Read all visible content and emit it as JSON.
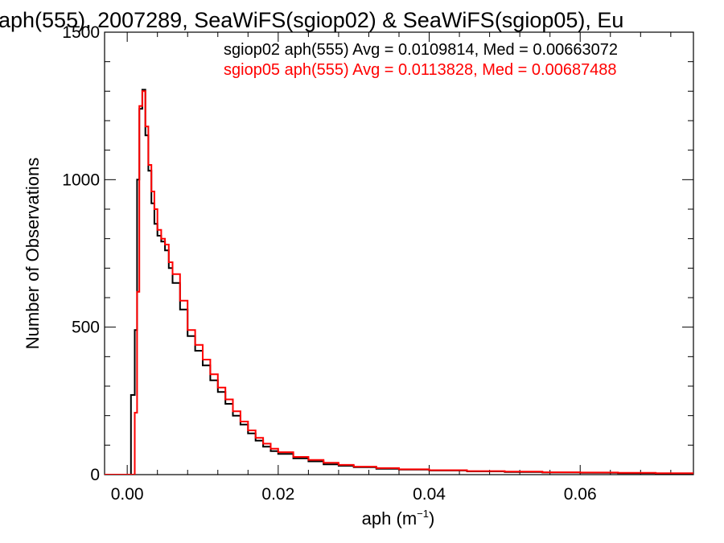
{
  "chart_data": {
    "type": "line",
    "title": "aph(555), 2007289, SeaWiFS(sgiop02) & SeaWiFS(sgiop05), Eu",
    "xlabel_main": "aph (m",
    "xlabel_sup": "−1",
    "xlabel_tail": ")",
    "ylabel": "Number of Observations",
    "xlim": [
      -0.003,
      0.075
    ],
    "ylim": [
      0,
      1500
    ],
    "x_ticks": [
      {
        "value": 0.0,
        "label": "0.00"
      },
      {
        "value": 0.02,
        "label": "0.02"
      },
      {
        "value": 0.04,
        "label": "0.04"
      },
      {
        "value": 0.06,
        "label": "0.06"
      }
    ],
    "y_ticks": [
      {
        "value": 0,
        "label": "0"
      },
      {
        "value": 500,
        "label": "500"
      },
      {
        "value": 1000,
        "label": "1000"
      },
      {
        "value": 1500,
        "label": "1500"
      }
    ],
    "annotations": [
      {
        "text": "sgiop02 aph(555) Avg = 0.0109814, Med = 0.00663072",
        "color": "#000000"
      },
      {
        "text": "sgiop05 aph(555) Avg = 0.0113828, Med = 0.00687488",
        "color": "#ff0000"
      }
    ],
    "series": [
      {
        "color": "#000000",
        "x": [
          -0.003,
          0.0,
          0.0005,
          0.001,
          0.0013,
          0.0016,
          0.002,
          0.0024,
          0.0028,
          0.0032,
          0.0036,
          0.004,
          0.0045,
          0.005,
          0.0055,
          0.006,
          0.007,
          0.008,
          0.009,
          0.01,
          0.011,
          0.012,
          0.013,
          0.014,
          0.015,
          0.016,
          0.017,
          0.018,
          0.019,
          0.02,
          0.022,
          0.024,
          0.026,
          0.028,
          0.03,
          0.033,
          0.036,
          0.04,
          0.045,
          0.05,
          0.055,
          0.06,
          0.065,
          0.07,
          0.075
        ],
        "y": [
          0,
          0,
          270,
          490,
          1000,
          1240,
          1305,
          1150,
          1030,
          920,
          850,
          810,
          790,
          760,
          700,
          650,
          560,
          470,
          420,
          370,
          320,
          280,
          240,
          200,
          170,
          140,
          115,
          95,
          80,
          70,
          55,
          45,
          35,
          30,
          25,
          20,
          17,
          14,
          11,
          9,
          7,
          6,
          5,
          4,
          3
        ]
      },
      {
        "color": "#ff0000",
        "x": [
          -0.003,
          0.0005,
          0.001,
          0.0013,
          0.0016,
          0.002,
          0.0024,
          0.0028,
          0.0032,
          0.0036,
          0.004,
          0.0045,
          0.005,
          0.0055,
          0.006,
          0.007,
          0.008,
          0.009,
          0.01,
          0.011,
          0.012,
          0.013,
          0.014,
          0.015,
          0.016,
          0.017,
          0.018,
          0.019,
          0.02,
          0.022,
          0.024,
          0.026,
          0.028,
          0.03,
          0.033,
          0.036,
          0.04,
          0.045,
          0.05,
          0.055,
          0.06,
          0.065,
          0.07,
          0.075
        ],
        "y": [
          0,
          0,
          210,
          620,
          1250,
          1300,
          1180,
          1050,
          960,
          900,
          830,
          800,
          780,
          720,
          680,
          590,
          490,
          440,
          390,
          340,
          295,
          255,
          215,
          180,
          150,
          125,
          105,
          88,
          76,
          60,
          50,
          40,
          33,
          27,
          22,
          18,
          15,
          12,
          10,
          8,
          7,
          6,
          5,
          4
        ]
      }
    ]
  }
}
